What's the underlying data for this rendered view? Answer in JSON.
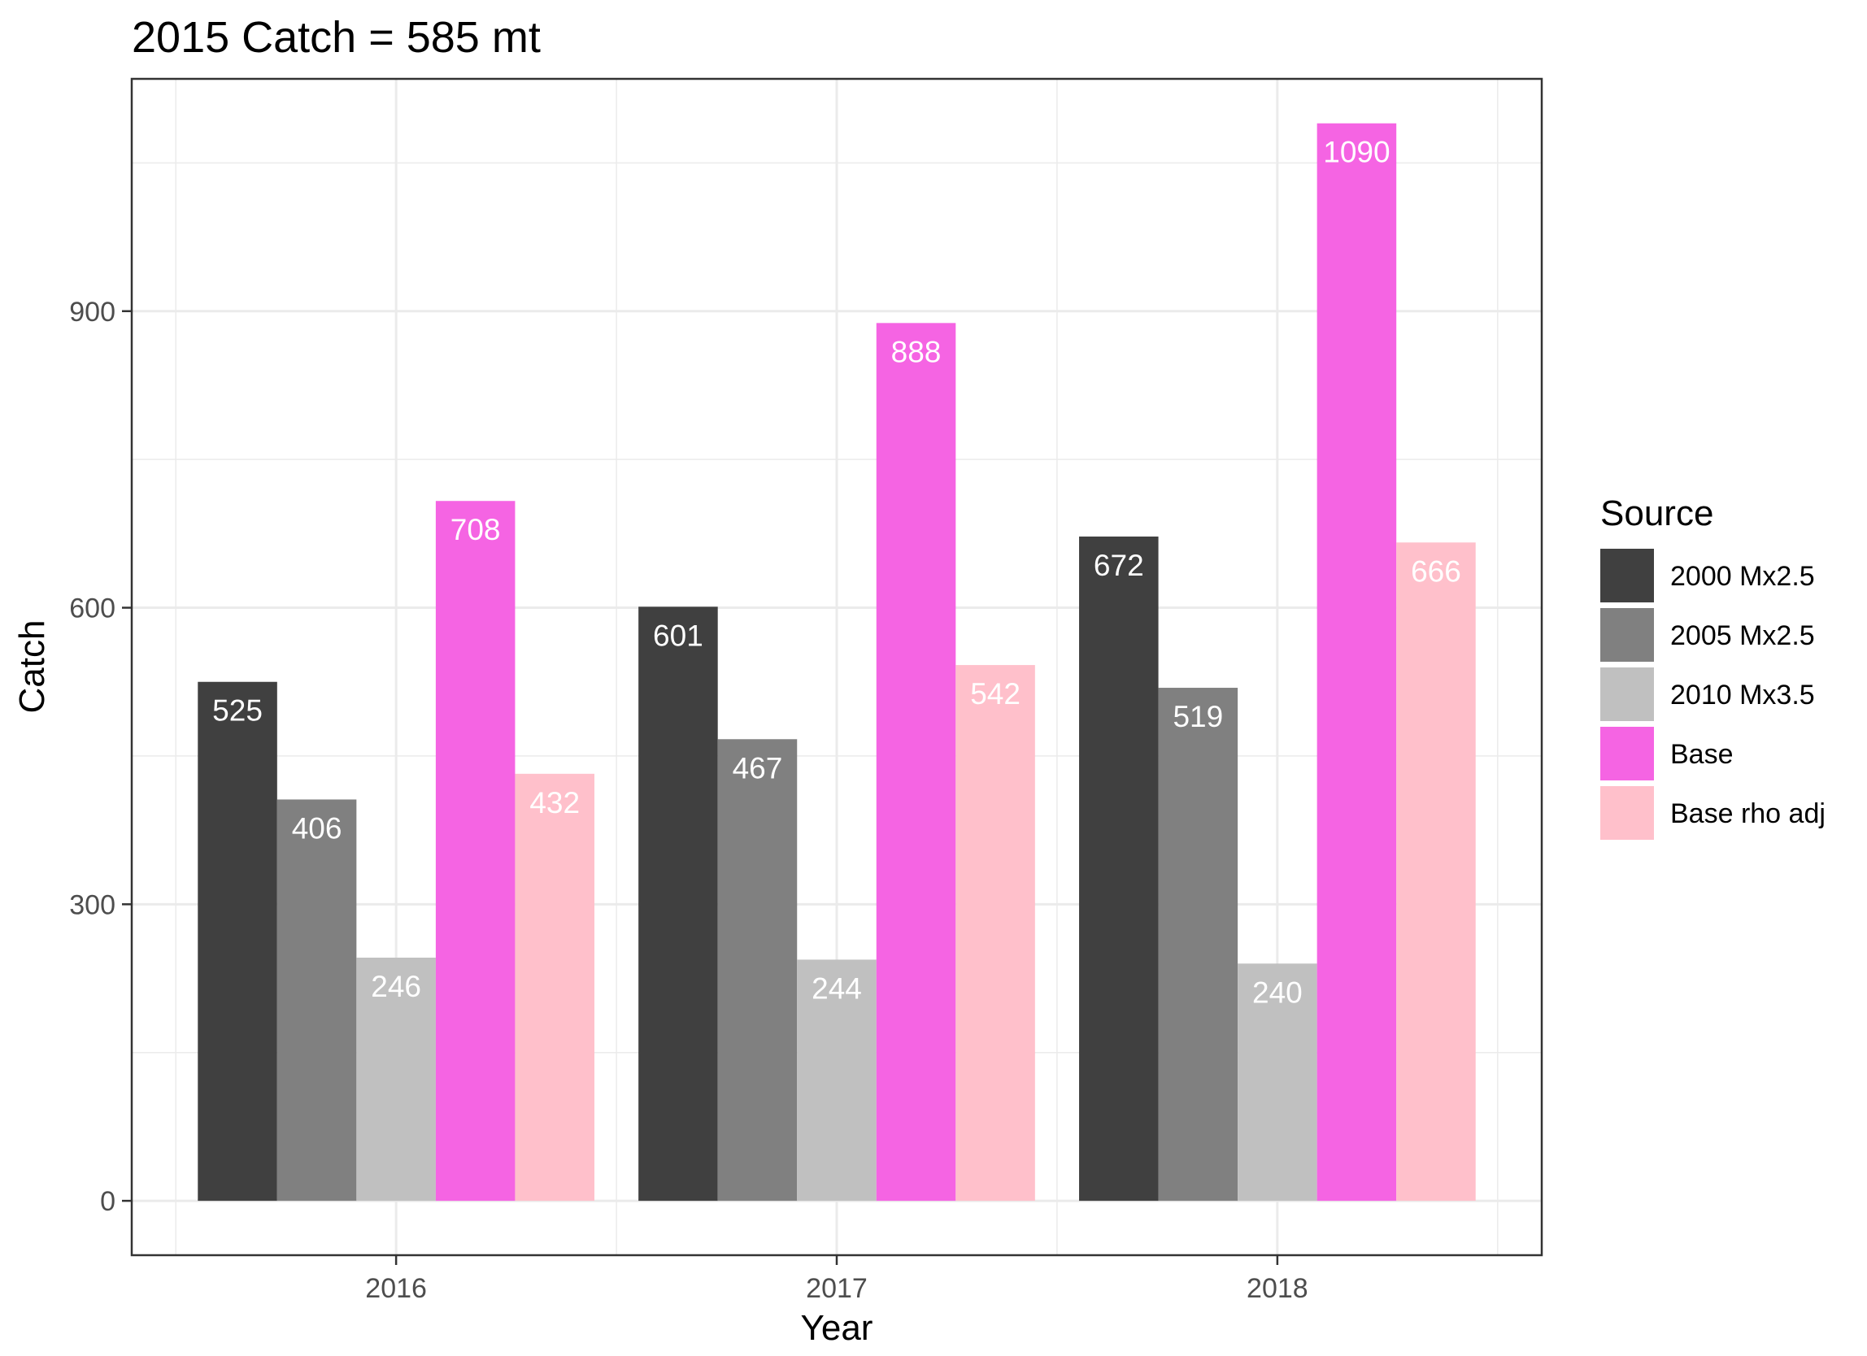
{
  "chart_data": {
    "type": "bar",
    "title": "2015  Catch =  585  mt",
    "xlabel": "Year",
    "ylabel": "Catch",
    "categories": [
      "2016",
      "2017",
      "2018"
    ],
    "ylim": [
      -55,
      1135
    ],
    "yticks": [
      0,
      300,
      600,
      900
    ],
    "grid": true,
    "legend": {
      "title": "Source",
      "position": "right"
    },
    "series": [
      {
        "name": "2000 Mx2.5",
        "color": "#404040",
        "values": [
          525,
          601,
          672
        ]
      },
      {
        "name": "2005 Mx2.5",
        "color": "#808080",
        "values": [
          406,
          467,
          519
        ]
      },
      {
        "name": "2010 Mx3.5",
        "color": "#C0C0C0",
        "values": [
          246,
          244,
          240
        ]
      },
      {
        "name": "Base",
        "color": "#F564E3",
        "values": [
          708,
          888,
          1090
        ]
      },
      {
        "name": "Base rho adj",
        "color": "#FFC0CB",
        "values": [
          432,
          542,
          666
        ]
      }
    ]
  }
}
